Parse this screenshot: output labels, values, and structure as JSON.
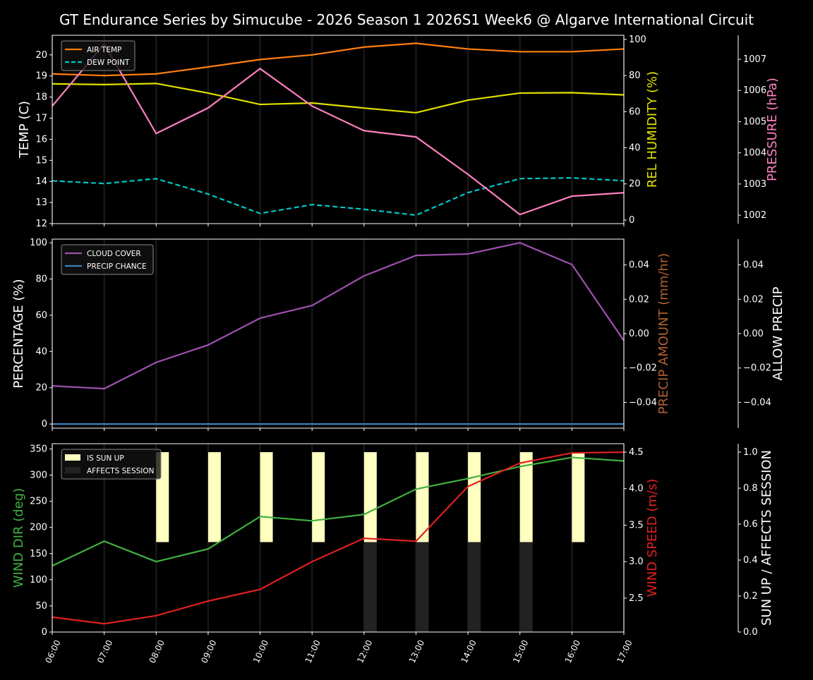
{
  "title": "GT Endurance Series by Simucube - 2026 Season 1 2026S1 Week6 @ Algarve International Circuit",
  "chart_data": [
    {
      "type": "line",
      "x": [
        "06:00",
        "07:00",
        "08:00",
        "09:00",
        "10:00",
        "11:00",
        "12:00",
        "13:00",
        "14:00",
        "15:00",
        "16:00",
        "17:00"
      ],
      "grid": "vertical",
      "legend": "top-left",
      "axes": [
        {
          "label": "TEMP (C)",
          "side": "left",
          "ylim": [
            12,
            20.93
          ],
          "ticks": [
            12,
            13,
            14,
            15,
            16,
            17,
            18,
            19,
            20
          ],
          "color": "#ffffff"
        },
        {
          "label": "REL HUMIDITY (%)",
          "side": "right",
          "ylim": [
            -2,
            102.3
          ],
          "ticks": [
            0,
            20,
            40,
            60,
            80,
            100
          ],
          "color": "#e0e000"
        },
        {
          "label": "PRESSURE (hPa)",
          "side": "right-outer",
          "ylim": [
            1001.73,
            1007.77
          ],
          "ticks": [
            1002,
            1003,
            1004,
            1005,
            1006,
            1007
          ],
          "color": "#ff80c0"
        }
      ],
      "series": [
        {
          "name": "AIR TEMP",
          "axis": 0,
          "color": "#ff7f0e",
          "style": "solid",
          "values": [
            19.1,
            19.02,
            19.1,
            19.43,
            19.78,
            20.0,
            20.37,
            20.55,
            20.28,
            20.15,
            20.15,
            20.28
          ]
        },
        {
          "name": "DEW POINT",
          "axis": 0,
          "color": "#00c8c8",
          "style": "dashed",
          "values": [
            14.03,
            13.9,
            14.13,
            13.4,
            12.48,
            12.9,
            12.68,
            12.4,
            13.47,
            14.13,
            14.17,
            14.03
          ]
        },
        {
          "axis": 1,
          "color": "#e0e000",
          "style": "solid",
          "values": [
            75.4,
            75.0,
            75.6,
            70.3,
            64.0,
            64.8,
            62.0,
            59.4,
            66.4,
            70.3,
            70.5,
            69.3
          ]
        },
        {
          "axis": 2,
          "color": "#ff80c0",
          "style": "solid",
          "values": [
            1005.5,
            1007.49,
            1004.62,
            1005.44,
            1006.7,
            1005.5,
            1004.71,
            1004.51,
            1003.31,
            1002.02,
            1002.61,
            1002.72
          ]
        }
      ]
    },
    {
      "type": "line",
      "x": [
        "06:00",
        "07:00",
        "08:00",
        "09:00",
        "10:00",
        "11:00",
        "12:00",
        "13:00",
        "14:00",
        "15:00",
        "16:00",
        "17:00"
      ],
      "grid": "vertical",
      "legend": "top-left",
      "axes": [
        {
          "label": "PERCENTAGE (%)",
          "side": "left",
          "ylim": [
            -2.3,
            102
          ],
          "ticks": [
            0,
            20,
            40,
            60,
            80,
            100
          ],
          "color": "#ffffff"
        },
        {
          "label": "PRECIP AMOUNT (mm/hr)",
          "side": "right",
          "ylim": [
            -0.055,
            0.055
          ],
          "ticks": [
            "-0.04",
            "-0.02",
            "0.00",
            "0.02",
            "0.04"
          ],
          "color": "#b06030"
        },
        {
          "label": "ALLOW PRECIP",
          "side": "right-outer",
          "ylim": [
            -0.055,
            0.055
          ],
          "ticks": [
            "-0.04",
            "-0.02",
            "0.00",
            "0.02",
            "0.04"
          ],
          "color": "#ffffff"
        }
      ],
      "series": [
        {
          "name": "CLOUD COVER",
          "axis": 0,
          "color": "#a050b0",
          "style": "solid",
          "values": [
            21,
            19.5,
            34,
            43.6,
            58.4,
            65.4,
            81.7,
            93,
            93.8,
            100,
            88,
            46
          ]
        },
        {
          "name": "PRECIP CHANCE",
          "axis": 0,
          "color": "#4080c0",
          "style": "solid",
          "values": [
            0,
            0,
            0,
            0,
            0,
            0,
            0,
            0,
            0,
            0,
            0,
            0
          ]
        }
      ]
    },
    {
      "type": "line",
      "x": [
        "06:00",
        "07:00",
        "08:00",
        "09:00",
        "10:00",
        "11:00",
        "12:00",
        "13:00",
        "14:00",
        "15:00",
        "16:00",
        "17:00"
      ],
      "grid": "vertical",
      "legend": "top-left",
      "axes": [
        {
          "label": "WIND DIR (deg)",
          "side": "left",
          "ylim": [
            0,
            360
          ],
          "ticks": [
            0,
            50,
            100,
            150,
            200,
            250,
            300,
            350
          ],
          "color": "#40b040"
        },
        {
          "label": "WIND SPEED (m/s)",
          "side": "right",
          "ylim": [
            2.036,
            4.616
          ],
          "ticks": [
            "2.5",
            "3.0",
            "3.5",
            "4.0",
            "4.5"
          ],
          "color": "#e02020"
        },
        {
          "label": "SUN UP / AFFECTS SESSION",
          "side": "right-outer",
          "ylim": [
            0,
            1.047
          ],
          "ticks": [
            "0.0",
            "0.2",
            "0.4",
            "0.6",
            "0.8",
            "1.0"
          ],
          "color": "#ffffff"
        }
      ],
      "bars": [
        {
          "name": "IS SUN UP",
          "axis": 2,
          "color": "#ffffc0",
          "base": 0.5,
          "values": [
            0,
            0,
            1,
            1,
            1,
            1,
            1,
            1,
            1,
            1,
            1,
            0
          ]
        },
        {
          "name": "AFFECTS SESSION",
          "axis": 2,
          "color": "#222222",
          "base": 0,
          "values": [
            0,
            0,
            0,
            0,
            0,
            0,
            0.5,
            0.5,
            0.5,
            0.5,
            0,
            0
          ]
        }
      ],
      "series": [
        {
          "axis": 0,
          "color": "#40b040",
          "style": "solid",
          "values": [
            126.5,
            173.6,
            134.6,
            158.8,
            220.7,
            212.6,
            224.8,
            273.2,
            293.4,
            316.3,
            333.8,
            327
          ]
        },
        {
          "axis": 1,
          "color": "#e02020",
          "style": "solid",
          "values": [
            2.24,
            2.15,
            2.26,
            2.46,
            2.62,
            3.0,
            3.32,
            3.28,
            4.03,
            4.35,
            4.49,
            4.5
          ]
        }
      ]
    }
  ]
}
